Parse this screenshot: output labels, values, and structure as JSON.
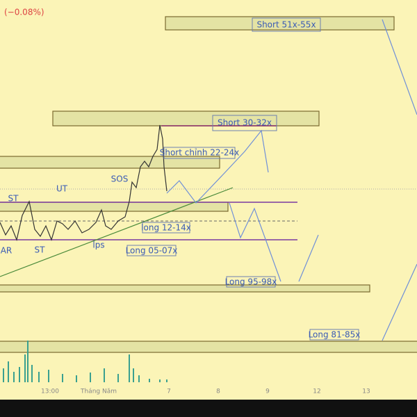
{
  "header": {
    "change": "(−0.08%)"
  },
  "annotations": {
    "short_51_55": "Short 51x-55x",
    "short_30_32": "Short 30-32x",
    "short_chinh": "Short chỉnh 22-24x",
    "sos": "SOS",
    "ut": "UT",
    "st_top": "ST",
    "ar": "AR",
    "st_bottom": "ST",
    "lps": "lps",
    "long_12_14": "long 12-14x",
    "long_05_07": "Long 05-07x",
    "long_95_98": "Long 95-98x",
    "long_81_85": "Long 81-85x"
  },
  "x_axis": {
    "labels": [
      "13:00",
      "Tháng Năm",
      "7",
      "8",
      "9",
      "12",
      "13"
    ]
  }
}
